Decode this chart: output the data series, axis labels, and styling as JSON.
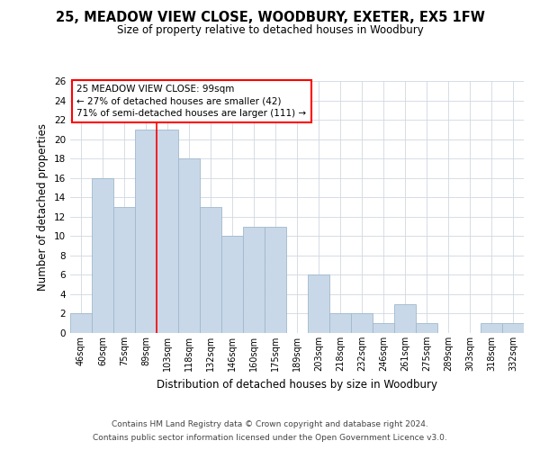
{
  "title": "25, MEADOW VIEW CLOSE, WOODBURY, EXETER, EX5 1FW",
  "subtitle": "Size of property relative to detached houses in Woodbury",
  "xlabel": "Distribution of detached houses by size in Woodbury",
  "ylabel": "Number of detached properties",
  "bar_labels": [
    "46sqm",
    "60sqm",
    "75sqm",
    "89sqm",
    "103sqm",
    "118sqm",
    "132sqm",
    "146sqm",
    "160sqm",
    "175sqm",
    "189sqm",
    "203sqm",
    "218sqm",
    "232sqm",
    "246sqm",
    "261sqm",
    "275sqm",
    "289sqm",
    "303sqm",
    "318sqm",
    "332sqm"
  ],
  "bar_values": [
    2,
    16,
    13,
    21,
    21,
    18,
    13,
    10,
    11,
    11,
    0,
    6,
    2,
    2,
    1,
    3,
    1,
    0,
    0,
    1,
    1
  ],
  "bar_color": "#c8d8e8",
  "bar_edge_color": "#a0b8cc",
  "ylim": [
    0,
    26
  ],
  "yticks": [
    0,
    2,
    4,
    6,
    8,
    10,
    12,
    14,
    16,
    18,
    20,
    22,
    24,
    26
  ],
  "red_line_x": 4,
  "annotation_line1": "25 MEADOW VIEW CLOSE: 99sqm",
  "annotation_line2": "← 27% of detached houses are smaller (42)",
  "annotation_line3": "71% of semi-detached houses are larger (111) →",
  "footnote1": "Contains HM Land Registry data © Crown copyright and database right 2024.",
  "footnote2": "Contains public sector information licensed under the Open Government Licence v3.0.",
  "background_color": "#ffffff",
  "grid_color": "#d0d8e0"
}
